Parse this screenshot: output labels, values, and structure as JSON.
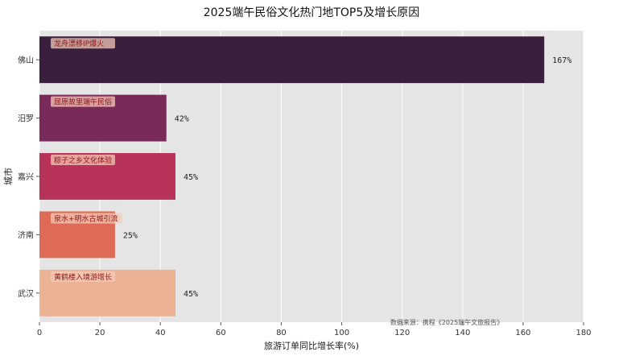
{
  "chart_data": {
    "type": "bar",
    "orientation": "horizontal",
    "title": "2025端午民俗文化热门地TOP5及增长原因",
    "xlabel": "旅游订单同比增长率(%)",
    "ylabel": "城市",
    "xlim": [
      0,
      180
    ],
    "xticks": [
      0,
      20,
      40,
      60,
      80,
      100,
      120,
      140,
      160,
      180
    ],
    "grid": true,
    "categories": [
      "佛山",
      "汨罗",
      "嘉兴",
      "济南",
      "武汉"
    ],
    "values": [
      167,
      42,
      45,
      25,
      45
    ],
    "value_labels": [
      "167%",
      "42%",
      "45%",
      "25%",
      "45%"
    ],
    "annotations": [
      "龙舟漂移IP爆火",
      "屈原故里端午民俗",
      "粽子之乡文化体验",
      "泉水+明水古城引流",
      "黄鹤楼入境游增长"
    ],
    "colors": [
      "#3a1f3d",
      "#7a2a58",
      "#b8335a",
      "#de6b55",
      "#ecb294"
    ],
    "source": "数据来源：携程《2025端午文旅报告》"
  }
}
